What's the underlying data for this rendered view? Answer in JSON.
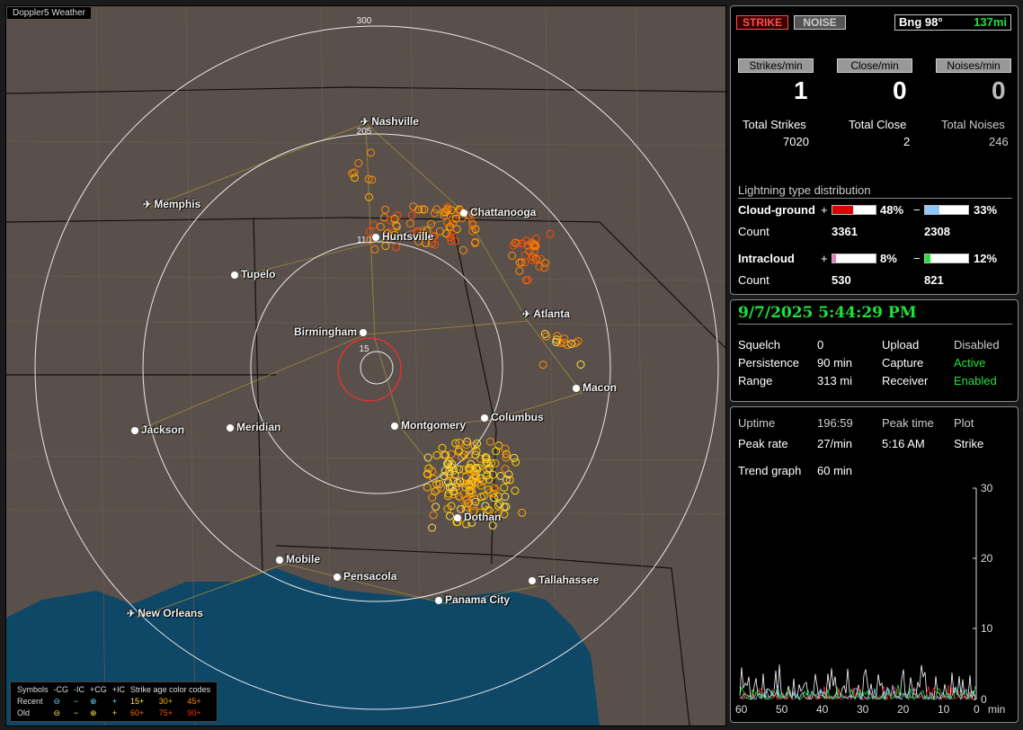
{
  "map": {
    "title": "Doppler5 Weather",
    "range_labels": [
      "300",
      "205",
      "110",
      "15"
    ],
    "cities": [
      {
        "name": "Nashville",
        "icon": "airport-icon"
      },
      {
        "name": "Memphis",
        "icon": "airport-icon"
      },
      {
        "name": "Chattanooga",
        "icon": "city-dot"
      },
      {
        "name": "Huntsville",
        "icon": "city-dot"
      },
      {
        "name": "Tupelo",
        "icon": "city-dot"
      },
      {
        "name": "Atlanta",
        "icon": "airport-icon"
      },
      {
        "name": "Birmingham",
        "icon": "city-dot"
      },
      {
        "name": "Macon",
        "icon": "city-dot"
      },
      {
        "name": "Columbus",
        "icon": "city-dot"
      },
      {
        "name": "Montgomery",
        "icon": "city-dot"
      },
      {
        "name": "Jackson",
        "icon": "city-dot"
      },
      {
        "name": "Meridian",
        "icon": "city-dot"
      },
      {
        "name": "Dothan",
        "icon": "city-dot"
      },
      {
        "name": "Mobile",
        "icon": "city-dot"
      },
      {
        "name": "Pensacola",
        "icon": "city-dot"
      },
      {
        "name": "Tallahassee",
        "icon": "city-dot"
      },
      {
        "name": "Panama City",
        "icon": "city-dot"
      },
      {
        "name": "New Orleans",
        "icon": "airport-icon"
      }
    ],
    "legend": {
      "symbols_label": "Symbols",
      "cols": [
        "-CG",
        "-IC",
        "+CG",
        "+IC"
      ],
      "age_title": "Strike age color codes",
      "recent_label": "Recent",
      "old_label": "Old",
      "recent_symbols": [
        "⊖",
        "−",
        "⊕",
        "+"
      ],
      "old_symbols": [
        "⊖",
        "−",
        "⊕",
        "+"
      ],
      "recent_ages": [
        "15+",
        "30+",
        "45+"
      ],
      "old_ages": [
        "60+",
        "75+",
        "90+"
      ]
    }
  },
  "status": {
    "strike_btn": "STRIKE",
    "noise_btn": "NOISE",
    "bearing": "Bng 98°",
    "range": "137mi",
    "strikes_min_label": "Strikes/min",
    "close_min_label": "Close/min",
    "noises_min_label": "Noises/min",
    "strikes_min": "1",
    "close_min": "0",
    "noises_min": "0",
    "total_strikes_label": "Total Strikes",
    "total_close_label": "Total Close",
    "total_noises_label": "Total Noises",
    "total_strikes": "7020",
    "total_close": "2",
    "total_noises": "246",
    "dist_title": "Lightning type distribution",
    "cloud_ground_label": "Cloud-ground",
    "intracloud_label": "Intracloud",
    "count_label": "Count",
    "plus": "+",
    "minus": "−",
    "cg_plus_pct": "48%",
    "cg_minus_pct": "33%",
    "cg_plus_count": "3361",
    "cg_minus_count": "2308",
    "ic_plus_pct": "8%",
    "ic_minus_pct": "12%",
    "ic_plus_count": "530",
    "ic_minus_count": "821",
    "cg_plus_frac": 0.48,
    "cg_minus_frac": 0.33,
    "ic_plus_frac": 0.08,
    "ic_minus_frac": 0.12,
    "colors": {
      "cg_plus": "#e00000",
      "cg_minus": "#8ec8ff",
      "ic_plus": "#e87ab8",
      "ic_minus": "#22e03a"
    }
  },
  "settings": {
    "datetime": "9/7/2025 5:44:29 PM",
    "squelch_label": "Squelch",
    "squelch": "0",
    "persistence_label": "Persistence",
    "persistence": "90 min",
    "range_label": "Range",
    "range": "313 mi",
    "upload_label": "Upload",
    "upload": "Disabled",
    "capture_label": "Capture",
    "capture": "Active",
    "receiver_label": "Receiver",
    "receiver": "Enabled"
  },
  "stats": {
    "uptime_label": "Uptime",
    "uptime": "196:59",
    "peak_time_label": "Peak time",
    "peak_time": "5:16 AM",
    "plot_label": "Plot",
    "plot": "Strike",
    "peak_rate_label": "Peak rate",
    "peak_rate": "27/min",
    "trend_label": "Trend graph",
    "trend": "60 min",
    "y_ticks": [
      "30",
      "20",
      "10",
      "0"
    ],
    "x_ticks": [
      "60",
      "50",
      "40",
      "30",
      "20",
      "10",
      "0"
    ],
    "x_unit": "min"
  }
}
